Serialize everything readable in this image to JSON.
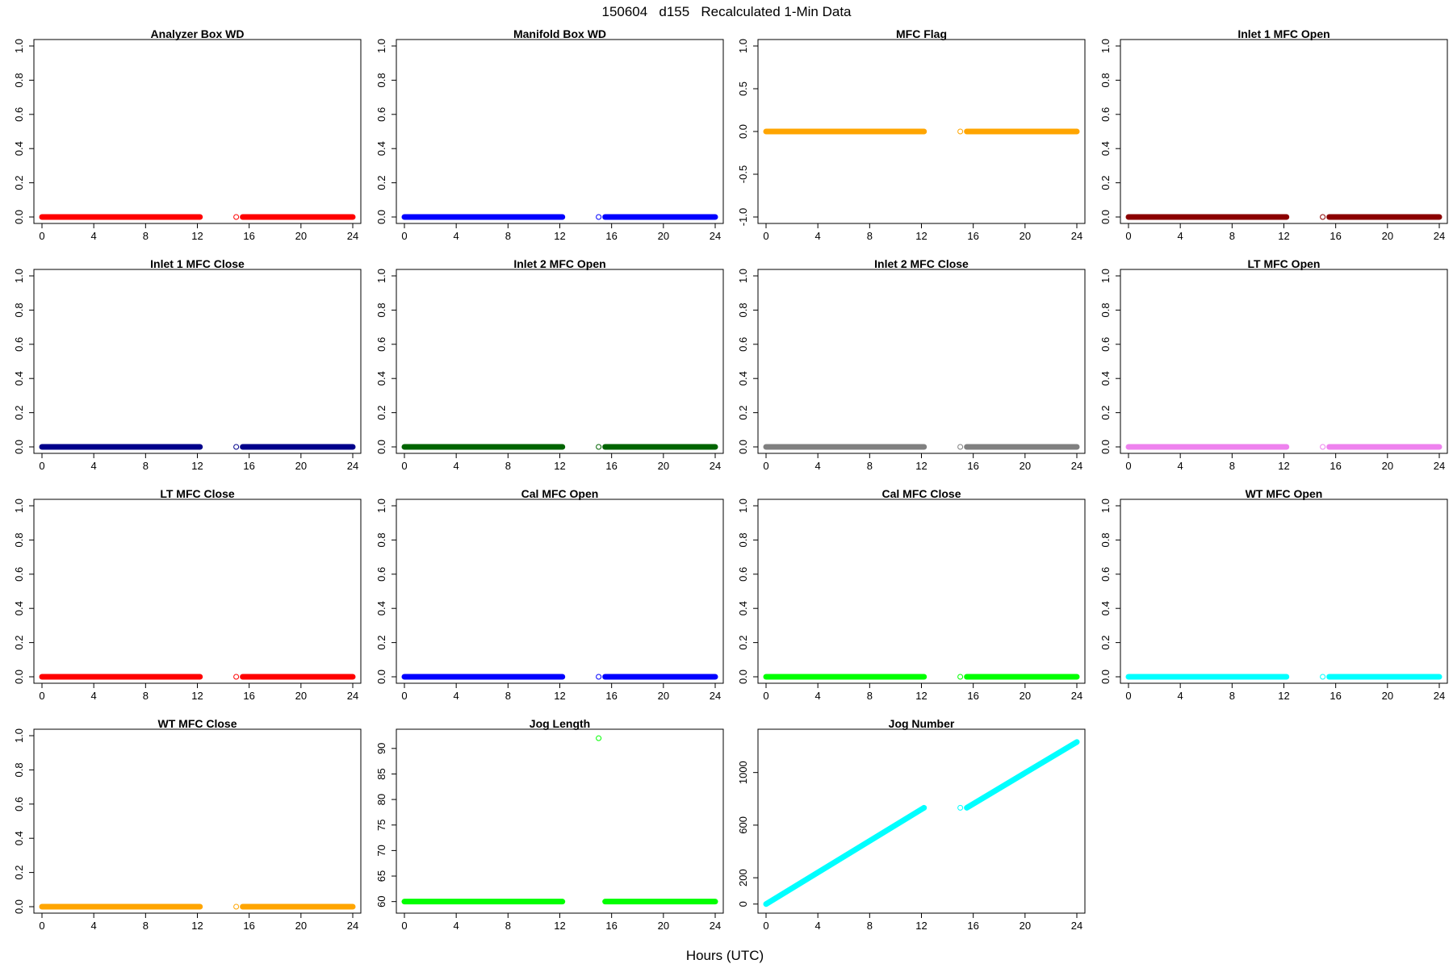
{
  "figure": {
    "title": "150604   d155   Recalculated 1-Min Data",
    "xlabel": "Hours (UTC)"
  },
  "chart_data": [
    {
      "type": "scatter",
      "title": "Analyzer Box WD",
      "color": "#ff0000",
      "xlim": [
        0,
        24
      ],
      "ylim": [
        0,
        1
      ],
      "xticks": [
        0,
        4,
        8,
        12,
        16,
        20,
        24
      ],
      "yticks": [
        "0.0",
        "0.2",
        "0.4",
        "0.6",
        "0.8",
        "1.0"
      ],
      "segments": [
        {
          "x_from": 0,
          "x_to": 12.2,
          "y_from": 0,
          "y_to": 0
        },
        {
          "x_from": 15.5,
          "x_to": 24,
          "y_from": 0,
          "y_to": 0
        }
      ],
      "isolated_points": [
        {
          "x": 15,
          "y": 0
        }
      ]
    },
    {
      "type": "scatter",
      "title": "Manifold Box WD",
      "color": "#0000ff",
      "xlim": [
        0,
        24
      ],
      "ylim": [
        0,
        1
      ],
      "xticks": [
        0,
        4,
        8,
        12,
        16,
        20,
        24
      ],
      "yticks": [
        "0.0",
        "0.2",
        "0.4",
        "0.6",
        "0.8",
        "1.0"
      ],
      "segments": [
        {
          "x_from": 0,
          "x_to": 12.2,
          "y_from": 0,
          "y_to": 0
        },
        {
          "x_from": 15.5,
          "x_to": 24,
          "y_from": 0,
          "y_to": 0
        }
      ],
      "isolated_points": [
        {
          "x": 15,
          "y": 0
        }
      ]
    },
    {
      "type": "scatter",
      "title": "MFC Flag",
      "color": "#ffa500",
      "xlim": [
        0,
        24
      ],
      "ylim": [
        -1,
        1
      ],
      "xticks": [
        0,
        4,
        8,
        12,
        16,
        20,
        24
      ],
      "yticks": [
        "-1.0",
        "-0.5",
        "0.0",
        "0.5",
        "1.0"
      ],
      "segments": [
        {
          "x_from": 0,
          "x_to": 12.2,
          "y_from": 0,
          "y_to": 0
        },
        {
          "x_from": 15.5,
          "x_to": 24,
          "y_from": 0,
          "y_to": 0
        }
      ],
      "isolated_points": [
        {
          "x": 15,
          "y": 0
        }
      ]
    },
    {
      "type": "scatter",
      "title": "Inlet 1 MFC Open",
      "color": "#8b0000",
      "xlim": [
        0,
        24
      ],
      "ylim": [
        0,
        1
      ],
      "xticks": [
        0,
        4,
        8,
        12,
        16,
        20,
        24
      ],
      "yticks": [
        "0.0",
        "0.2",
        "0.4",
        "0.6",
        "0.8",
        "1.0"
      ],
      "segments": [
        {
          "x_from": 0,
          "x_to": 12.2,
          "y_from": 0,
          "y_to": 0
        },
        {
          "x_from": 15.5,
          "x_to": 24,
          "y_from": 0,
          "y_to": 0
        }
      ],
      "isolated_points": [
        {
          "x": 15,
          "y": 0
        }
      ]
    },
    {
      "type": "scatter",
      "title": "Inlet 1 MFC Close",
      "color": "#00008b",
      "xlim": [
        0,
        24
      ],
      "ylim": [
        0,
        1
      ],
      "xticks": [
        0,
        4,
        8,
        12,
        16,
        20,
        24
      ],
      "yticks": [
        "0.0",
        "0.2",
        "0.4",
        "0.6",
        "0.8",
        "1.0"
      ],
      "segments": [
        {
          "x_from": 0,
          "x_to": 12.2,
          "y_from": 0,
          "y_to": 0
        },
        {
          "x_from": 15.5,
          "x_to": 24,
          "y_from": 0,
          "y_to": 0
        }
      ],
      "isolated_points": [
        {
          "x": 15,
          "y": 0
        }
      ]
    },
    {
      "type": "scatter",
      "title": "Inlet 2 MFC Open",
      "color": "#006400",
      "xlim": [
        0,
        24
      ],
      "ylim": [
        0,
        1
      ],
      "xticks": [
        0,
        4,
        8,
        12,
        16,
        20,
        24
      ],
      "yticks": [
        "0.0",
        "0.2",
        "0.4",
        "0.6",
        "0.8",
        "1.0"
      ],
      "segments": [
        {
          "x_from": 0,
          "x_to": 12.2,
          "y_from": 0,
          "y_to": 0
        },
        {
          "x_from": 15.5,
          "x_to": 24,
          "y_from": 0,
          "y_to": 0
        }
      ],
      "isolated_points": [
        {
          "x": 15,
          "y": 0
        }
      ]
    },
    {
      "type": "scatter",
      "title": "Inlet 2 MFC Close",
      "color": "#808080",
      "xlim": [
        0,
        24
      ],
      "ylim": [
        0,
        1
      ],
      "xticks": [
        0,
        4,
        8,
        12,
        16,
        20,
        24
      ],
      "yticks": [
        "0.0",
        "0.2",
        "0.4",
        "0.6",
        "0.8",
        "1.0"
      ],
      "segments": [
        {
          "x_from": 0,
          "x_to": 12.2,
          "y_from": 0,
          "y_to": 0
        },
        {
          "x_from": 15.5,
          "x_to": 24,
          "y_from": 0,
          "y_to": 0
        }
      ],
      "isolated_points": [
        {
          "x": 15,
          "y": 0
        }
      ]
    },
    {
      "type": "scatter",
      "title": "LT MFC Open",
      "color": "#ee82ee",
      "xlim": [
        0,
        24
      ],
      "ylim": [
        0,
        1
      ],
      "xticks": [
        0,
        4,
        8,
        12,
        16,
        20,
        24
      ],
      "yticks": [
        "0.0",
        "0.2",
        "0.4",
        "0.6",
        "0.8",
        "1.0"
      ],
      "segments": [
        {
          "x_from": 0,
          "x_to": 12.2,
          "y_from": 0,
          "y_to": 0
        },
        {
          "x_from": 15.5,
          "x_to": 24,
          "y_from": 0,
          "y_to": 0
        }
      ],
      "isolated_points": [
        {
          "x": 15,
          "y": 0
        }
      ]
    },
    {
      "type": "scatter",
      "title": "LT MFC Close",
      "color": "#ff0000",
      "xlim": [
        0,
        24
      ],
      "ylim": [
        0,
        1
      ],
      "xticks": [
        0,
        4,
        8,
        12,
        16,
        20,
        24
      ],
      "yticks": [
        "0.0",
        "0.2",
        "0.4",
        "0.6",
        "0.8",
        "1.0"
      ],
      "segments": [
        {
          "x_from": 0,
          "x_to": 12.2,
          "y_from": 0,
          "y_to": 0
        },
        {
          "x_from": 15.5,
          "x_to": 24,
          "y_from": 0,
          "y_to": 0
        }
      ],
      "isolated_points": [
        {
          "x": 15,
          "y": 0
        }
      ]
    },
    {
      "type": "scatter",
      "title": "Cal MFC Open",
      "color": "#0000ff",
      "xlim": [
        0,
        24
      ],
      "ylim": [
        0,
        1
      ],
      "xticks": [
        0,
        4,
        8,
        12,
        16,
        20,
        24
      ],
      "yticks": [
        "0.0",
        "0.2",
        "0.4",
        "0.6",
        "0.8",
        "1.0"
      ],
      "segments": [
        {
          "x_from": 0,
          "x_to": 12.2,
          "y_from": 0,
          "y_to": 0
        },
        {
          "x_from": 15.5,
          "x_to": 24,
          "y_from": 0,
          "y_to": 0
        }
      ],
      "isolated_points": [
        {
          "x": 15,
          "y": 0
        }
      ]
    },
    {
      "type": "scatter",
      "title": "Cal MFC Close",
      "color": "#00ff00",
      "xlim": [
        0,
        24
      ],
      "ylim": [
        0,
        1
      ],
      "xticks": [
        0,
        4,
        8,
        12,
        16,
        20,
        24
      ],
      "yticks": [
        "0.0",
        "0.2",
        "0.4",
        "0.6",
        "0.8",
        "1.0"
      ],
      "segments": [
        {
          "x_from": 0,
          "x_to": 12.2,
          "y_from": 0,
          "y_to": 0
        },
        {
          "x_from": 15.5,
          "x_to": 24,
          "y_from": 0,
          "y_to": 0
        }
      ],
      "isolated_points": [
        {
          "x": 15,
          "y": 0
        }
      ]
    },
    {
      "type": "scatter",
      "title": "WT MFC Open",
      "color": "#00ffff",
      "xlim": [
        0,
        24
      ],
      "ylim": [
        0,
        1
      ],
      "xticks": [
        0,
        4,
        8,
        12,
        16,
        20,
        24
      ],
      "yticks": [
        "0.0",
        "0.2",
        "0.4",
        "0.6",
        "0.8",
        "1.0"
      ],
      "segments": [
        {
          "x_from": 0,
          "x_to": 12.2,
          "y_from": 0,
          "y_to": 0
        },
        {
          "x_from": 15.5,
          "x_to": 24,
          "y_from": 0,
          "y_to": 0
        }
      ],
      "isolated_points": [
        {
          "x": 15,
          "y": 0
        }
      ]
    },
    {
      "type": "scatter",
      "title": "WT MFC Close",
      "color": "#ffa500",
      "xlim": [
        0,
        24
      ],
      "ylim": [
        0,
        1
      ],
      "xticks": [
        0,
        4,
        8,
        12,
        16,
        20,
        24
      ],
      "yticks": [
        "0.0",
        "0.2",
        "0.4",
        "0.6",
        "0.8",
        "1.0"
      ],
      "segments": [
        {
          "x_from": 0,
          "x_to": 12.2,
          "y_from": 0,
          "y_to": 0
        },
        {
          "x_from": 15.5,
          "x_to": 24,
          "y_from": 0,
          "y_to": 0
        }
      ],
      "isolated_points": [
        {
          "x": 15,
          "y": 0
        }
      ]
    },
    {
      "type": "scatter",
      "title": "Jog Length",
      "color": "#00ff00",
      "xlim": [
        0,
        24
      ],
      "ylim": [
        59,
        92.5
      ],
      "xticks": [
        0,
        4,
        8,
        12,
        16,
        20,
        24
      ],
      "yticks": [
        "60",
        "65",
        "70",
        "75",
        "80",
        "85",
        "90"
      ],
      "segments": [
        {
          "x_from": 0,
          "x_to": 12.2,
          "y_from": 60,
          "y_to": 60
        },
        {
          "x_from": 15.5,
          "x_to": 24,
          "y_from": 60,
          "y_to": 60
        }
      ],
      "isolated_points": [
        {
          "x": 15,
          "y": 92
        }
      ]
    },
    {
      "type": "scatter",
      "title": "Jog Number",
      "color": "#00ffff",
      "xlim": [
        0,
        24
      ],
      "ylim": [
        -20,
        1280
      ],
      "xticks": [
        0,
        4,
        8,
        12,
        16,
        20,
        24
      ],
      "yticks": [
        "0",
        "200",
        "600",
        "1000"
      ],
      "segments": [
        {
          "x_from": 0,
          "x_to": 12.2,
          "y_from": 0,
          "y_to": 732
        },
        {
          "x_from": 15.5,
          "x_to": 24,
          "y_from": 732,
          "y_to": 1232
        }
      ],
      "isolated_points": [
        {
          "x": 15,
          "y": 732
        }
      ]
    }
  ]
}
